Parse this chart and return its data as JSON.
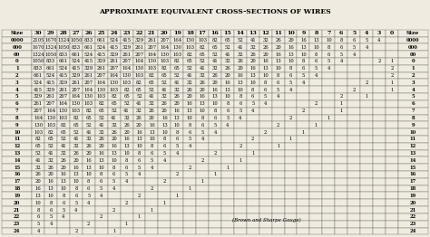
{
  "title": "APPROXIMATE EQUIVALENT CROSS-SECTIONS OF WIRES",
  "col_headers": [
    "Size",
    "30",
    "29",
    "28",
    "27",
    "26",
    "25",
    "24",
    "23",
    "22",
    "21",
    "20",
    "19",
    "18",
    "17",
    "16",
    "15",
    "14",
    "13",
    "12",
    "11",
    "10",
    "9",
    "8",
    "7",
    "6",
    "5",
    "4",
    "3",
    "0",
    "Size"
  ],
  "rows": [
    [
      "0000",
      "2105",
      "1670",
      "1324",
      "1050",
      "833",
      "661",
      "524",
      "415",
      "329",
      "261",
      "207",
      "164",
      "130",
      "103",
      "82",
      "65",
      "52",
      "41",
      "32",
      "26",
      "20",
      "16",
      "13",
      "10",
      "8",
      "6",
      "5",
      "4",
      "",
      "0000"
    ],
    [
      "000",
      "1670",
      "1324",
      "1050",
      "833",
      "661",
      "524",
      "415",
      "329",
      "261",
      "207",
      "164",
      "130",
      "103",
      "82",
      "65",
      "52",
      "41",
      "32",
      "26",
      "20",
      "16",
      "13",
      "10",
      "8",
      "6",
      "5",
      "4",
      "",
      "",
      "000"
    ],
    [
      "00",
      "1324",
      "1050",
      "833",
      "661",
      "524",
      "415",
      "329",
      "261",
      "207",
      "164",
      "130",
      "103",
      "82",
      "65",
      "52",
      "41",
      "32",
      "26",
      "20",
      "16",
      "13",
      "10",
      "8",
      "6",
      "5",
      "4",
      "",
      "",
      "",
      "00"
    ],
    [
      "0",
      "1050",
      "833",
      "661",
      "524",
      "415",
      "329",
      "261",
      "207",
      "164",
      "130",
      "103",
      "82",
      "65",
      "52",
      "41",
      "32",
      "26",
      "20",
      "16",
      "13",
      "10",
      "8",
      "6",
      "5",
      "4",
      "",
      "",
      "2",
      "1",
      "0"
    ],
    [
      "1",
      "833",
      "661",
      "524",
      "415",
      "329",
      "261",
      "207",
      "164",
      "130",
      "103",
      "82",
      "65",
      "52",
      "41",
      "32",
      "26",
      "20",
      "16",
      "13",
      "10",
      "8",
      "6",
      "5",
      "4",
      "",
      "",
      "",
      "",
      "2",
      "1"
    ],
    [
      "2",
      "661",
      "524",
      "415",
      "329",
      "261",
      "207",
      "164",
      "130",
      "103",
      "82",
      "65",
      "52",
      "41",
      "32",
      "26",
      "20",
      "16",
      "13",
      "10",
      "8",
      "6",
      "5",
      "4",
      "",
      "",
      "",
      "",
      "",
      "2",
      "2"
    ],
    [
      "3",
      "524",
      "415",
      "329",
      "261",
      "207",
      "164",
      "130",
      "103",
      "82",
      "65",
      "52",
      "41",
      "32",
      "26",
      "20",
      "16",
      "13",
      "10",
      "8",
      "6",
      "5",
      "4",
      "",
      "",
      "",
      "",
      "2",
      "",
      "1",
      "3"
    ],
    [
      "4",
      "415",
      "329",
      "261",
      "207",
      "164",
      "130",
      "103",
      "82",
      "65",
      "52",
      "41",
      "32",
      "26",
      "20",
      "16",
      "13",
      "10",
      "8",
      "6",
      "5",
      "4",
      "",
      "",
      "",
      "",
      "2",
      "",
      "",
      "1",
      "4"
    ],
    [
      "5",
      "329",
      "261",
      "207",
      "164",
      "130",
      "103",
      "82",
      "65",
      "52",
      "41",
      "32",
      "26",
      "20",
      "16",
      "13",
      "10",
      "8",
      "6",
      "5",
      "4",
      "",
      "",
      "",
      "",
      "2",
      "",
      "1",
      "",
      "",
      "5"
    ],
    [
      "6",
      "261",
      "207",
      "164",
      "130",
      "103",
      "82",
      "65",
      "52",
      "41",
      "32",
      "26",
      "20",
      "16",
      "13",
      "10",
      "8",
      "6",
      "5",
      "4",
      "",
      "",
      "",
      "2",
      "",
      "1",
      "",
      "",
      "",
      "",
      "6"
    ],
    [
      "7",
      "207",
      "164",
      "130",
      "103",
      "82",
      "65",
      "52",
      "41",
      "32",
      "26",
      "20",
      "16",
      "13",
      "10",
      "8",
      "6",
      "5",
      "4",
      "",
      "",
      "",
      "2",
      "",
      "",
      "1",
      "",
      "",
      "",
      "",
      "7"
    ],
    [
      "8",
      "164",
      "130",
      "103",
      "82",
      "65",
      "52",
      "41",
      "32",
      "26",
      "20",
      "16",
      "13",
      "10",
      "8",
      "6",
      "5",
      "4",
      "",
      "",
      "",
      "2",
      "",
      "",
      "1",
      "",
      "",
      "",
      "",
      "",
      "8"
    ],
    [
      "9",
      "130",
      "103",
      "82",
      "65",
      "52",
      "41",
      "32",
      "26",
      "20",
      "16",
      "13",
      "10",
      "8",
      "6",
      "5",
      "4",
      "",
      "",
      "",
      "2",
      "",
      "",
      "1",
      "",
      "",
      "",
      "",
      "",
      "",
      "9"
    ],
    [
      "10",
      "103",
      "82",
      "65",
      "52",
      "41",
      "32",
      "26",
      "20",
      "16",
      "13",
      "10",
      "8",
      "6",
      "5",
      "4",
      "",
      "",
      "",
      "2",
      "",
      "",
      "1",
      "",
      "",
      "",
      "",
      "",
      "",
      "",
      "10"
    ],
    [
      "11",
      "82",
      "65",
      "52",
      "41",
      "32",
      "26",
      "20",
      "16",
      "13",
      "10",
      "8",
      "6",
      "5",
      "4",
      "",
      "",
      "",
      "2",
      "",
      "",
      "1",
      "",
      "",
      "",
      "",
      "",
      "",
      "",
      "",
      "11"
    ],
    [
      "12",
      "65",
      "52",
      "41",
      "32",
      "26",
      "20",
      "16",
      "13",
      "10",
      "8",
      "6",
      "5",
      "4",
      "",
      "",
      "",
      "2",
      "",
      "",
      "1",
      "",
      "",
      "",
      "",
      "",
      "",
      "",
      "",
      "",
      "12"
    ],
    [
      "13",
      "52",
      "41",
      "32",
      "26",
      "20",
      "16",
      "13",
      "10",
      "8",
      "6",
      "5",
      "4",
      "",
      "",
      "2",
      "",
      "",
      "1",
      "",
      "",
      "",
      "",
      "",
      "",
      "",
      "",
      "",
      "",
      "",
      "13"
    ],
    [
      "14",
      "41",
      "32",
      "26",
      "20",
      "16",
      "13",
      "10",
      "8",
      "6",
      "5",
      "4",
      "",
      "",
      "2",
      "",
      "",
      "1",
      "",
      "",
      "",
      "",
      "",
      "",
      "",
      "",
      "",
      "",
      "",
      "",
      "14"
    ],
    [
      "15",
      "32",
      "26",
      "20",
      "16",
      "13",
      "10",
      "8",
      "6",
      "5",
      "4",
      "",
      "",
      "2",
      "",
      "",
      "1",
      "",
      "",
      "",
      "",
      "",
      "",
      "",
      "",
      "",
      "",
      "",
      "",
      "",
      "15"
    ],
    [
      "16",
      "26",
      "20",
      "16",
      "13",
      "10",
      "8",
      "6",
      "5",
      "4",
      "",
      "",
      "2",
      "",
      "",
      "1",
      "",
      "",
      "",
      "",
      "",
      "",
      "",
      "",
      "",
      "",
      "",
      "",
      "",
      "",
      "16"
    ],
    [
      "17",
      "20",
      "16",
      "13",
      "10",
      "8",
      "6",
      "5",
      "4",
      "",
      "",
      "2",
      "",
      "",
      "1",
      "",
      "",
      "",
      "",
      "",
      "",
      "",
      "",
      "",
      "",
      "",
      "",
      "",
      "",
      "",
      "17"
    ],
    [
      "18",
      "16",
      "13",
      "10",
      "8",
      "6",
      "5",
      "4",
      "",
      "",
      "2",
      "",
      "",
      "1",
      "",
      "",
      "",
      "",
      "",
      "",
      "",
      "",
      "",
      "",
      "",
      "",
      "",
      "",
      "",
      "",
      "18"
    ],
    [
      "19",
      "13",
      "10",
      "8",
      "6",
      "5",
      "4",
      "",
      "",
      "2",
      "",
      "",
      "1",
      "",
      "",
      "",
      "",
      "",
      "",
      "",
      "",
      "",
      "",
      "",
      "",
      "",
      "",
      "",
      "",
      "",
      "19"
    ],
    [
      "20",
      "10",
      "8",
      "6",
      "5",
      "4",
      "",
      "",
      "2",
      "",
      "",
      "1",
      "",
      "",
      "",
      "",
      "",
      "",
      "",
      "",
      "",
      "",
      "",
      "",
      "",
      "",
      "",
      "",
      "",
      "",
      "20"
    ],
    [
      "21",
      "8",
      "6",
      "5",
      "4",
      "",
      "",
      "2",
      "",
      "",
      "1",
      "",
      "",
      "",
      "",
      "",
      "",
      "",
      "",
      "",
      "",
      "",
      "",
      "",
      "",
      "",
      "",
      "",
      "",
      "",
      "21"
    ],
    [
      "22",
      "6",
      "5",
      "4",
      "",
      "",
      "2",
      "",
      "",
      "1",
      "",
      "",
      "",
      "",
      "",
      "",
      "",
      "",
      "",
      "",
      "",
      "",
      "",
      "",
      "",
      "",
      "",
      "",
      "",
      "",
      "22"
    ],
    [
      "23",
      "5",
      "4",
      "",
      "",
      "2",
      "",
      "",
      "1",
      "",
      "",
      "",
      "",
      "",
      "",
      "",
      "",
      "",
      "",
      "",
      "",
      "",
      "",
      "",
      "",
      "",
      "",
      "",
      "",
      "",
      "23"
    ],
    [
      "24",
      "4",
      "",
      "",
      "2",
      "",
      "",
      "1",
      "",
      "",
      "",
      "",
      "",
      "",
      "",
      "",
      "",
      "",
      "",
      "",
      "",
      "",
      "",
      "",
      "",
      "",
      "",
      "",
      "",
      "",
      "24"
    ]
  ],
  "note": "(Brown and Sharpe Gauge)",
  "bg_color": "#f0ebe0",
  "title_fontsize": 5.5,
  "cell_fontsize": 3.8,
  "header_fontsize": 4.5,
  "note_fontsize": 4.0
}
